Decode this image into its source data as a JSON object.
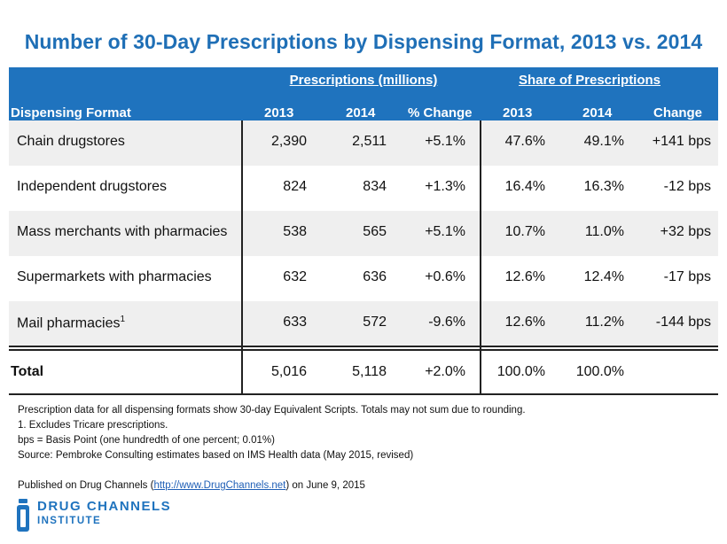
{
  "title": "Number of 30-Day Prescriptions by Dispensing Format, 2013 vs. 2014",
  "header": {
    "group_prescriptions": "Prescriptions (millions)",
    "group_share": "Share of Prescriptions",
    "col_format": "Dispensing Format",
    "col_2013a": "2013",
    "col_2014a": "2014",
    "col_pct_change": "% Change",
    "col_2013b": "2013",
    "col_2014b": "2014",
    "col_change": "Change"
  },
  "rows": [
    {
      "label": "Chain drugstores",
      "sup": "",
      "p2013": "2,390",
      "p2014": "2,511",
      "pchg": "+5.1%",
      "s2013": "47.6%",
      "s2014": "49.1%",
      "schg": "+141 bps"
    },
    {
      "label": "Independent  drugstores",
      "sup": "",
      "p2013": "824",
      "p2014": "834",
      "pchg": "+1.3%",
      "s2013": "16.4%",
      "s2014": "16.3%",
      "schg": "-12 bps"
    },
    {
      "label": "Mass merchants with pharmacies",
      "sup": "",
      "p2013": "538",
      "p2014": "565",
      "pchg": "+5.1%",
      "s2013": "10.7%",
      "s2014": "11.0%",
      "schg": "+32 bps"
    },
    {
      "label": "Supermarkets with pharmacies",
      "sup": "",
      "p2013": "632",
      "p2014": "636",
      "pchg": "+0.6%",
      "s2013": "12.6%",
      "s2014": "12.4%",
      "schg": "-17 bps"
    },
    {
      "label": "Mail pharmacies",
      "sup": "1",
      "p2013": "633",
      "p2014": "572",
      "pchg": "-9.6%",
      "s2013": "12.6%",
      "s2014": "11.2%",
      "schg": "-144 bps"
    }
  ],
  "total": {
    "label": "Total",
    "p2013": "5,016",
    "p2014": "5,118",
    "pchg": "+2.0%",
    "s2013": "100.0%",
    "s2014": "100.0%",
    "schg": ""
  },
  "notes": {
    "line1": "Prescription data for all dispensing formats show 30-day Equivalent Scripts. Totals may not sum due to rounding.",
    "line2": "1. Excludes Tricare prescriptions.",
    "line3": "bps = Basis Point (one hundredth of one percent; 0.01%)",
    "line4": "Source: Pembroke Consulting estimates based on IMS Health data (May 2015, revised)",
    "published_prefix": "Published on Drug Channels (",
    "published_link": "http://www.DrugChannels.net",
    "published_suffix": ") on June 9, 2015"
  },
  "logo": {
    "line1": "DRUG CHANNELS",
    "line2": "INSTITUTE",
    "icon": "pill-bottle-icon",
    "color": "#1f73be"
  },
  "colors": {
    "header_bg": "#1f73be",
    "title": "#1f6fb6",
    "row_shade": "#efefef"
  }
}
